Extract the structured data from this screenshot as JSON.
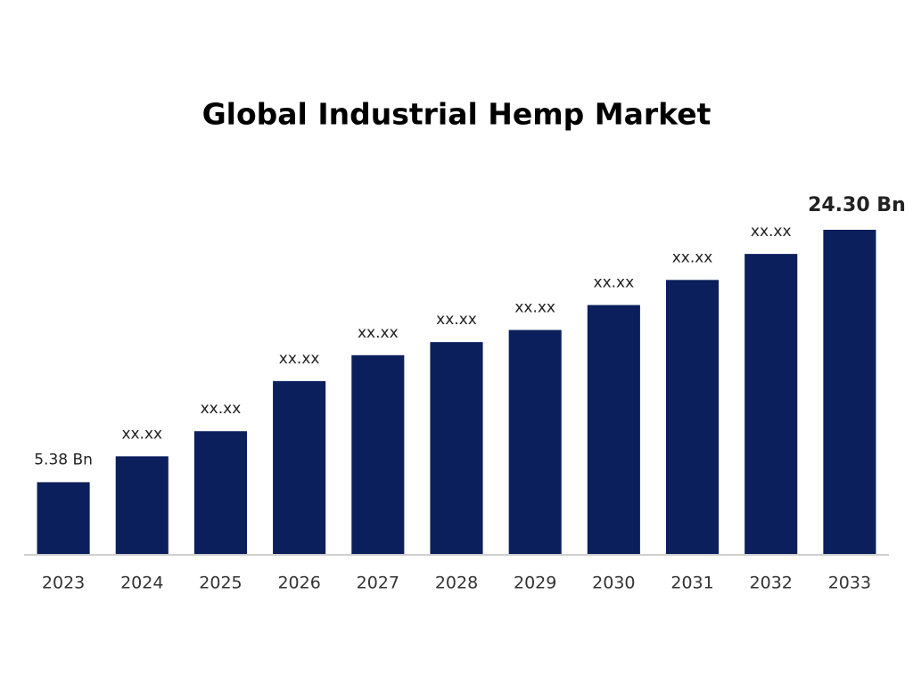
{
  "chart_data": {
    "type": "bar",
    "title": "Global Industrial Hemp Market",
    "categories": [
      "2023",
      "2024",
      "2025",
      "2026",
      "2027",
      "2028",
      "2029",
      "2030",
      "2031",
      "2032",
      "2033"
    ],
    "values": [
      5.38,
      7.32,
      9.2,
      12.96,
      14.9,
      15.88,
      16.79,
      18.66,
      20.54,
      22.49,
      24.3
    ],
    "value_labels": [
      "5.38 Bn",
      "xx.xx",
      "xx.xx",
      "xx.xx",
      "xx.xx",
      "xx.xx",
      "xx.xx",
      "xx.xx",
      "xx.xx",
      "xx.xx",
      "24.30 Bn"
    ],
    "color": "#0b1f5c"
  }
}
